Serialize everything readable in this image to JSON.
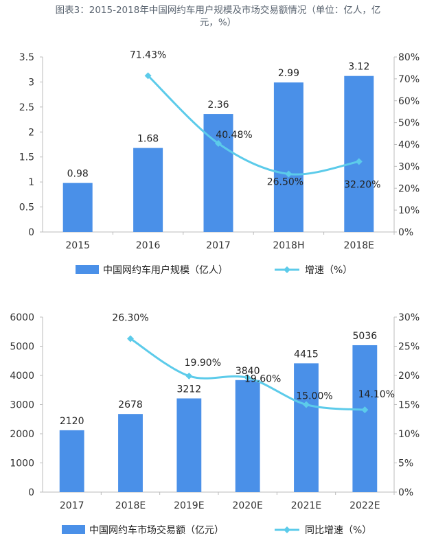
{
  "title": {
    "line1": "图表3：2015-2018年中国网约车用户规模及市场交易额情况（单位：亿人，亿",
    "line2": "元，%）"
  },
  "colors": {
    "bar": "#4a90e8",
    "line": "#5ccbea",
    "grid_axis": "#bbbbbb"
  },
  "chart_data": [
    {
      "type": "bar",
      "categories": [
        "2015",
        "2016",
        "2017",
        "2018H",
        "2018E"
      ],
      "series": [
        {
          "name": "中国网约车用户规模（亿人）",
          "type": "bar",
          "axis": "left",
          "values": [
            0.98,
            1.68,
            2.36,
            2.99,
            3.12
          ],
          "labels": [
            "0.98",
            "1.68",
            "2.36",
            "2.99",
            "3.12"
          ]
        },
        {
          "name": "增速（%）",
          "type": "line",
          "axis": "right",
          "values": [
            null,
            71.43,
            40.48,
            26.5,
            32.2
          ],
          "labels": [
            "",
            "71.43%",
            "40.48%",
            "26.50%",
            "32.20%"
          ]
        }
      ],
      "ylim_left": [
        0,
        3.5
      ],
      "yticks_left": [
        "0",
        "0.5",
        "1",
        "1.5",
        "2",
        "2.5",
        "3",
        "3.5"
      ],
      "ylim_right": [
        0,
        80
      ],
      "yticks_right": [
        "0%",
        "10%",
        "20%",
        "30%",
        "40%",
        "50%",
        "60%",
        "70%",
        "80%"
      ],
      "legend_position": "bottom"
    },
    {
      "type": "bar",
      "categories": [
        "2017",
        "2018E",
        "2019E",
        "2020E",
        "2021E",
        "2022E"
      ],
      "series": [
        {
          "name": "中国网约车市场交易额（亿元）",
          "type": "bar",
          "axis": "left",
          "values": [
            2120,
            2678,
            3212,
            3840,
            4415,
            5036
          ],
          "labels": [
            "2120",
            "2678",
            "3212",
            "3840",
            "4415",
            "5036"
          ]
        },
        {
          "name": "同比增速（%）",
          "type": "line",
          "axis": "right",
          "values": [
            null,
            26.3,
            19.9,
            19.6,
            15.0,
            14.1
          ],
          "labels": [
            "",
            "26.30%",
            "19.90%",
            "19.60%",
            "15.00%",
            "14.10%"
          ]
        }
      ],
      "ylim_left": [
        0,
        6000
      ],
      "yticks_left": [
        "0",
        "1000",
        "2000",
        "3000",
        "4000",
        "5000",
        "6000"
      ],
      "ylim_right": [
        0,
        30
      ],
      "yticks_right": [
        "0%",
        "5%",
        "10%",
        "15%",
        "20%",
        "25%",
        "30%"
      ],
      "legend_position": "bottom"
    }
  ]
}
